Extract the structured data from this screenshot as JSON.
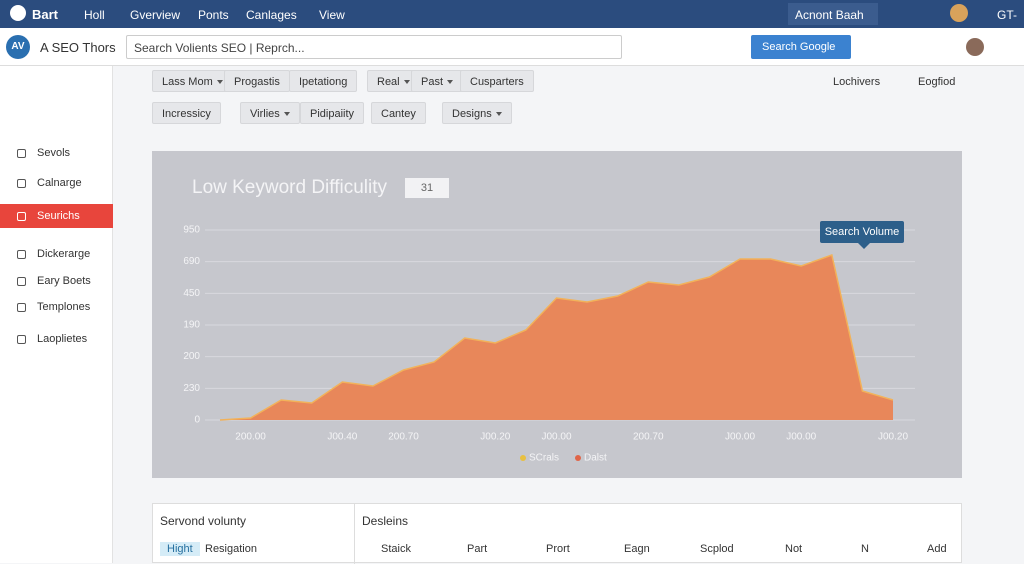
{
  "topbar": {
    "logo": "Bart",
    "menu": [
      "Holl",
      "Gverview",
      "Ponts",
      "Canlages",
      "View"
    ],
    "account": "Acnont Baah",
    "right": "GT-"
  },
  "header": {
    "badge": "AV",
    "app": "A SEO Thors",
    "search": "Search Volients SEO | Reprch...",
    "button": "Search Google"
  },
  "sidebar": {
    "items": [
      "Sevols",
      "Calnarge",
      "Seurichs",
      "Dickerarge",
      "Eary Boets",
      "Templones",
      "Laoplietes"
    ],
    "active": 2
  },
  "filters": {
    "row1": [
      "Lass Mom",
      "Progastis",
      "Ipetationg",
      "Real",
      "Past",
      "Cusparters"
    ],
    "row2": [
      "Incressicy",
      "Virlies",
      "Pidipaiity",
      "Cantey",
      "Designs"
    ],
    "right": [
      "Lochivers",
      "Eogfiod"
    ]
  },
  "chart": {
    "type": "area",
    "title": "Low Keyword Difficulity",
    "badge": "31",
    "annotation": "Search Volume",
    "categories": [
      null,
      "200.00",
      null,
      null,
      "J00.40",
      null,
      "200.70",
      null,
      null,
      "J00.20",
      null,
      "J00.00",
      null,
      null,
      "200.70",
      null,
      null,
      "J00.00",
      null,
      "J00.00",
      null,
      null,
      "J00.20"
    ],
    "values": [
      0,
      10,
      100,
      85,
      190,
      170,
      250,
      290,
      410,
      385,
      450,
      610,
      590,
      620,
      690,
      675,
      715,
      805,
      805,
      770,
      825,
      145,
      100
    ],
    "color": "#e8875a",
    "line_color": "#f2b25a",
    "ylim": [
      0,
      950
    ],
    "yticks": [
      0,
      {
        "value": 158,
        "label": "230"
      },
      {
        "value": 317,
        "label": "200"
      },
      {
        "value": 475,
        "label": "190"
      },
      {
        "value": 633,
        "label": "450"
      },
      {
        "value": 792,
        "label": "690"
      },
      {
        "value": 950,
        "label": "950"
      }
    ],
    "grid": true,
    "legend": [
      {
        "name": "SCrals",
        "color": "#e8c040"
      },
      {
        "name": "Dalst",
        "color": "#e06548"
      }
    ]
  },
  "table": {
    "headers": [
      "Servond volunty",
      "Desleins"
    ],
    "tag": "Hight",
    "row": [
      "Resigation",
      "Staick",
      "Part",
      "Prort",
      "Eagn",
      "Scplod",
      "Not",
      "N",
      "Add"
    ]
  }
}
